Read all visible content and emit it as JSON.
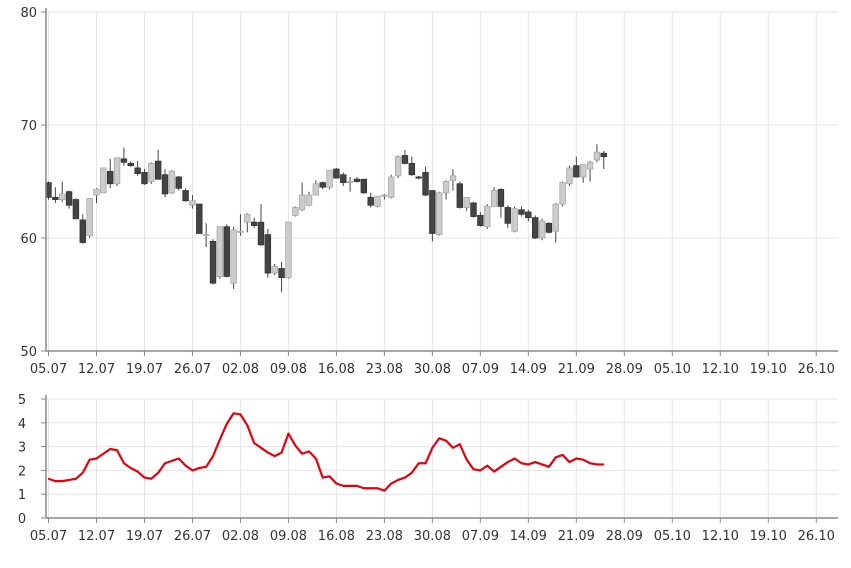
{
  "chart_data": [
    {
      "type": "candlestick",
      "title": "",
      "xlabel": "",
      "ylabel": "",
      "ylim": [
        50,
        80
      ],
      "y_ticks": [
        50,
        60,
        70,
        80
      ],
      "x_tick_labels": [
        "05.07",
        "12.07",
        "19.07",
        "26.07",
        "02.08",
        "09.08",
        "16.08",
        "23.08",
        "30.08",
        "07.09",
        "14.09",
        "21.09",
        "28.09",
        "05.10",
        "12.10",
        "19.10",
        "26.10"
      ],
      "grid": true,
      "colors": {
        "up": "#cccccc",
        "down": "#444444",
        "wick": "#444444"
      },
      "ohlc": [
        [
          64.9,
          65.0,
          63.4,
          63.6
        ],
        [
          63.6,
          64.5,
          63.1,
          63.4
        ],
        [
          63.4,
          65.0,
          63.2,
          63.9
        ],
        [
          64.1,
          64.2,
          62.6,
          62.9
        ],
        [
          63.4,
          63.5,
          61.7,
          61.7
        ],
        [
          61.6,
          62.1,
          59.5,
          59.6
        ],
        [
          60.2,
          63.5,
          60.0,
          63.5
        ],
        [
          63.8,
          64.4,
          63.1,
          64.3
        ],
        [
          64.0,
          66.2,
          64.0,
          66.2
        ],
        [
          65.9,
          67.0,
          64.4,
          64.8
        ],
        [
          64.8,
          67.1,
          64.6,
          67.1
        ],
        [
          67.0,
          68.0,
          66.4,
          66.7
        ],
        [
          66.6,
          66.8,
          66.3,
          66.4
        ],
        [
          66.2,
          66.8,
          65.5,
          65.7
        ],
        [
          65.8,
          66.1,
          64.7,
          64.8
        ],
        [
          65.0,
          66.7,
          64.8,
          66.6
        ],
        [
          66.8,
          67.8,
          65.2,
          65.2
        ],
        [
          65.6,
          66.1,
          63.6,
          63.9
        ],
        [
          64.0,
          66.0,
          63.9,
          65.9
        ],
        [
          65.4,
          65.5,
          64.2,
          64.4
        ],
        [
          64.2,
          64.4,
          63.2,
          63.3
        ],
        [
          62.9,
          63.8,
          62.6,
          63.3
        ],
        [
          63.0,
          63.0,
          60.4,
          60.4
        ],
        [
          60.2,
          61.3,
          59.2,
          60.3
        ],
        [
          59.7,
          59.9,
          55.9,
          56.0
        ],
        [
          56.6,
          61.0,
          56.4,
          61.0
        ],
        [
          61.0,
          61.2,
          56.5,
          56.6
        ],
        [
          56.0,
          61.0,
          55.5,
          60.7
        ],
        [
          60.5,
          62.1,
          60.2,
          60.6
        ],
        [
          61.4,
          62.2,
          60.5,
          62.1
        ],
        [
          61.4,
          61.8,
          60.9,
          61.1
        ],
        [
          61.4,
          63.0,
          59.3,
          59.4
        ],
        [
          60.3,
          60.8,
          56.5,
          56.9
        ],
        [
          56.9,
          57.7,
          56.7,
          57.5
        ],
        [
          57.3,
          57.9,
          55.2,
          56.5
        ],
        [
          56.5,
          61.4,
          56.4,
          61.4
        ],
        [
          62.0,
          62.8,
          61.9,
          62.7
        ],
        [
          62.5,
          64.9,
          62.4,
          63.8
        ],
        [
          62.9,
          64.1,
          62.8,
          63.8
        ],
        [
          63.8,
          65.1,
          63.8,
          64.8
        ],
        [
          64.9,
          65.0,
          64.3,
          64.5
        ],
        [
          64.5,
          66.0,
          64.3,
          66.0
        ],
        [
          66.1,
          66.2,
          65.3,
          65.3
        ],
        [
          65.6,
          65.8,
          64.6,
          64.9
        ],
        [
          64.9,
          65.4,
          64.1,
          65.0
        ],
        [
          65.2,
          65.4,
          64.9,
          65.0
        ],
        [
          65.2,
          65.2,
          63.9,
          64.0
        ],
        [
          63.6,
          64.0,
          62.7,
          62.9
        ],
        [
          62.8,
          63.7,
          62.7,
          63.7
        ],
        [
          63.7,
          63.9,
          63.4,
          63.8
        ],
        [
          63.6,
          65.6,
          63.5,
          65.4
        ],
        [
          65.5,
          67.3,
          65.3,
          67.2
        ],
        [
          67.3,
          67.8,
          66.5,
          66.6
        ],
        [
          66.6,
          67.2,
          65.5,
          65.6
        ],
        [
          65.4,
          65.5,
          65.2,
          65.3
        ],
        [
          65.8,
          66.3,
          63.7,
          63.8
        ],
        [
          64.2,
          64.2,
          59.7,
          60.4
        ],
        [
          60.3,
          64.1,
          60.2,
          64.0
        ],
        [
          64.0,
          65.1,
          63.4,
          65.0
        ],
        [
          65.1,
          66.1,
          64.2,
          65.5
        ],
        [
          64.8,
          65.0,
          62.6,
          62.7
        ],
        [
          62.7,
          63.6,
          62.4,
          63.6
        ],
        [
          63.1,
          63.2,
          61.8,
          61.9
        ],
        [
          62.0,
          62.3,
          61.0,
          61.1
        ],
        [
          61.0,
          63.0,
          60.8,
          62.8
        ],
        [
          62.8,
          64.5,
          62.8,
          64.2
        ],
        [
          64.3,
          64.4,
          61.8,
          62.8
        ],
        [
          62.7,
          62.9,
          60.9,
          61.3
        ],
        [
          60.6,
          62.8,
          60.5,
          62.6
        ],
        [
          62.5,
          62.8,
          61.9,
          62.1
        ],
        [
          62.3,
          62.5,
          61.5,
          61.8
        ],
        [
          61.8,
          62.0,
          59.9,
          60.0
        ],
        [
          60.0,
          61.7,
          59.8,
          61.5
        ],
        [
          61.3,
          61.4,
          60.4,
          60.5
        ],
        [
          60.6,
          63.1,
          59.6,
          63.0
        ],
        [
          63.0,
          65.0,
          62.8,
          64.9
        ],
        [
          64.8,
          66.4,
          64.6,
          66.2
        ],
        [
          66.4,
          67.2,
          65.4,
          65.4
        ],
        [
          65.4,
          66.5,
          64.9,
          66.5
        ],
        [
          66.1,
          66.8,
          65.0,
          66.7
        ],
        [
          66.9,
          68.3,
          66.7,
          67.6
        ],
        [
          67.5,
          67.7,
          66.1,
          67.2
        ]
      ]
    },
    {
      "type": "line",
      "title": "",
      "xlabel": "",
      "ylabel": "",
      "ylim": [
        0,
        5
      ],
      "y_ticks": [
        0,
        1,
        2,
        3,
        4,
        5
      ],
      "x_tick_labels": [
        "05.07",
        "12.07",
        "19.07",
        "26.07",
        "02.08",
        "09.08",
        "16.08",
        "23.08",
        "30.08",
        "07.09",
        "14.09",
        "21.09",
        "28.09",
        "05.10",
        "12.10",
        "19.10",
        "26.10"
      ],
      "grid": true,
      "series": [
        {
          "color": "#e3000f",
          "values": [
            1.65,
            1.55,
            1.55,
            1.6,
            1.65,
            1.9,
            2.45,
            2.5,
            2.7,
            2.9,
            2.85,
            2.3,
            2.1,
            1.95,
            1.7,
            1.65,
            1.9,
            2.3,
            2.4,
            2.5,
            2.2,
            2.0,
            2.1,
            2.15,
            2.6,
            3.3,
            3.95,
            4.4,
            4.35,
            3.9,
            3.15,
            2.95,
            2.75,
            2.6,
            2.75,
            3.55,
            3.05,
            2.7,
            2.8,
            2.5,
            1.7,
            1.75,
            1.45,
            1.35,
            1.35,
            1.35,
            1.25,
            1.25,
            1.25,
            1.15,
            1.45,
            1.6,
            1.7,
            1.9,
            2.3,
            2.3,
            2.95,
            3.35,
            3.25,
            2.95,
            3.1,
            2.45,
            2.05,
            2.0,
            2.2,
            1.95,
            2.15,
            2.35,
            2.5,
            2.3,
            2.25,
            2.35,
            2.25,
            2.15,
            2.55,
            2.65,
            2.35,
            2.5,
            2.45,
            2.3,
            2.25,
            2.25
          ]
        }
      ]
    }
  ]
}
